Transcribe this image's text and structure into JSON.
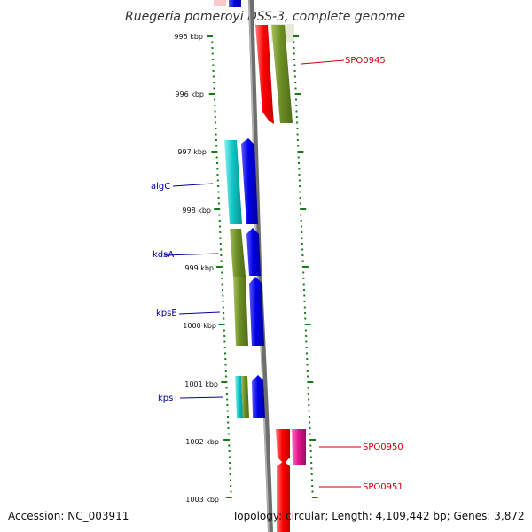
{
  "title": "Ruegeria pomeroyi DSS-3, complete genome",
  "accession": "Accession: NC_003911",
  "summary": "Topology: circular; Length: 4,109,442 bp; Genes: 3,872",
  "ruler_labels": [
    "995 kbp",
    "996 kbp",
    "997 kbp",
    "998 kbp",
    "999 kbp",
    "1000 kbp",
    "1001 kbp",
    "1002 kbp",
    "1003 kbp"
  ],
  "gene_labels": {
    "spo0945": "SPO0945",
    "algc": "algC",
    "kdsa": "kdsA",
    "kpse": "kpsE",
    "kpst": "kpsT",
    "spo0950": "SPO0950",
    "spo0951": "SPO0951"
  },
  "colors": {
    "backbone": "#808080",
    "tick": "#1a7a1a",
    "forward_label": "#000099",
    "reverse_label": "#cc0000",
    "red": "#ff1a1a",
    "blue": "#0a0adc",
    "olive": "#6b8e23",
    "cyan": "#18c8c8",
    "magenta": "#e0148c"
  }
}
